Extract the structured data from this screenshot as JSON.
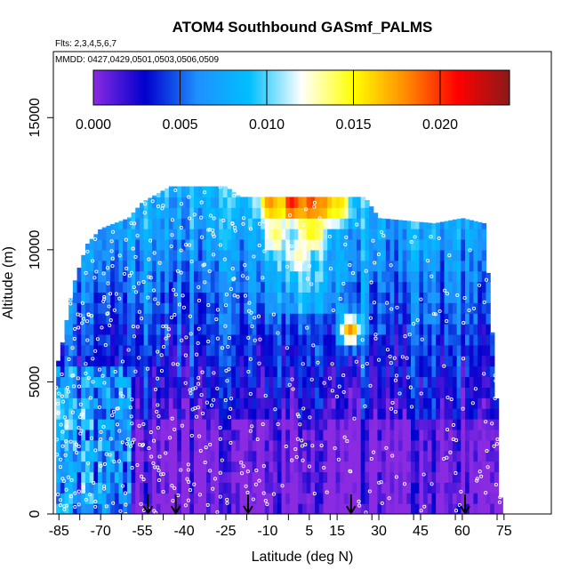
{
  "chart_data": {
    "type": "heatmap",
    "title": "ATOM4 Southbound GASmf_PALMS",
    "subtitle": "Flts: 2,3,4,5,6,7",
    "annotation": "MMDD: 0427,0429,0501,0503,0506,0509",
    "xlabel": "Latitude (deg N)",
    "ylabel": "Altitude (m)",
    "x_ticks": [
      -85,
      -70,
      -55,
      -40,
      -25,
      -10,
      5,
      15,
      30,
      45,
      60,
      75
    ],
    "x_tick_labels": [
      "-85",
      "-70",
      "-55",
      "-40",
      "-25",
      "-10",
      "5",
      "15",
      "30",
      "45",
      "60",
      "75"
    ],
    "y_ticks": [
      0,
      5000,
      10000,
      15000
    ],
    "y_tick_labels": [
      "0",
      "5000",
      "10000",
      "15000"
    ],
    "xlim": [
      -87,
      92
    ],
    "ylim": [
      0,
      17500
    ],
    "colorbar": {
      "min": 0.0,
      "max": 0.024,
      "ticks": [
        0.0,
        0.005,
        0.01,
        0.015,
        0.02
      ],
      "tick_labels": [
        "0.000",
        "0.005",
        "0.010",
        "0.015",
        "0.020"
      ],
      "colors": [
        "#8a2be2",
        "#0000cd",
        "#1e90ff",
        "#00bfff",
        "#ffffff",
        "#ffff00",
        "#ff8c00",
        "#ff0000",
        "#8b1a1a"
      ]
    },
    "arrow_latitudes": [
      -53,
      -43,
      -17,
      20,
      61
    ],
    "profile_extent": [
      {
        "lat": -85,
        "top": 5800
      },
      {
        "lat": -80,
        "top": 8600
      },
      {
        "lat": -75,
        "top": 10200
      },
      {
        "lat": -70,
        "top": 10800
      },
      {
        "lat": -60,
        "top": 11200
      },
      {
        "lat": -55,
        "top": 11800
      },
      {
        "lat": -45,
        "top": 12400
      },
      {
        "lat": -25,
        "top": 12400
      },
      {
        "lat": -20,
        "top": 12000
      },
      {
        "lat": 25,
        "top": 12000
      },
      {
        "lat": 30,
        "top": 11200
      },
      {
        "lat": 50,
        "top": 11000
      },
      {
        "lat": 60,
        "top": 11200
      },
      {
        "lat": 68,
        "top": 11000
      },
      {
        "lat": 70,
        "top": 8000
      },
      {
        "lat": 72,
        "top": 5000
      },
      {
        "lat": 74,
        "top": 0
      }
    ],
    "hotspots": [
      {
        "lat": -10,
        "alt": 11500,
        "value": 0.018
      },
      {
        "lat": -2,
        "alt": 11500,
        "value": 0.021
      },
      {
        "lat": 5,
        "alt": 11500,
        "value": 0.02
      },
      {
        "lat": 10,
        "alt": 11500,
        "value": 0.018
      },
      {
        "lat": 15,
        "alt": 11500,
        "value": 0.016
      },
      {
        "lat": -8,
        "alt": 10300,
        "value": 0.014
      },
      {
        "lat": 0,
        "alt": 9500,
        "value": 0.013
      },
      {
        "lat": 5,
        "alt": 10500,
        "value": 0.015
      },
      {
        "lat": 19,
        "alt": 6800,
        "value": 0.018
      }
    ]
  }
}
